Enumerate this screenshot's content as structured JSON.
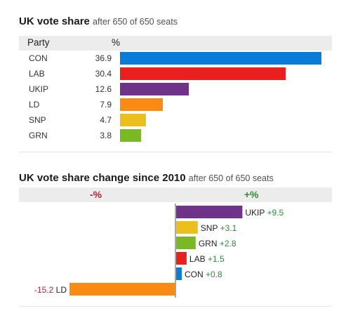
{
  "vote_share": {
    "title": "UK vote share",
    "subtitle": "after 650 of 650 seats",
    "header_party": "Party",
    "header_pct": "%"
  },
  "vote_change": {
    "title": "UK vote share change since 2010",
    "subtitle": "after 650 of 650 seats",
    "header_minus": "-%",
    "header_plus": "+%"
  },
  "chart_data": [
    {
      "type": "bar",
      "orientation": "horizontal",
      "title": "UK vote share",
      "subtitle": "after 650 of 650 seats",
      "categories": [
        "CON",
        "LAB",
        "UKIP",
        "LD",
        "SNP",
        "GRN"
      ],
      "values": [
        36.9,
        30.4,
        12.6,
        7.9,
        4.7,
        3.8
      ],
      "value_labels": [
        "36.9",
        "30.4",
        "12.6",
        "7.9",
        "4.7",
        "3.8"
      ],
      "colors": [
        "#0a7bd6",
        "#ea1f1f",
        "#70338a",
        "#f98a14",
        "#ebc01d",
        "#7ab826"
      ],
      "xlim": [
        0,
        36.9
      ],
      "grid": false
    },
    {
      "type": "bar",
      "orientation": "horizontal",
      "diverging": true,
      "title": "UK vote share change since 2010",
      "subtitle": "after 650 of 650 seats",
      "categories": [
        "UKIP",
        "SNP",
        "GRN",
        "LAB",
        "CON",
        "LD"
      ],
      "values": [
        9.5,
        3.1,
        2.8,
        1.5,
        0.8,
        -15.2
      ],
      "value_labels": [
        "+9.5",
        "+3.1",
        "+2.8",
        "+1.5",
        "+0.8",
        "-15.2"
      ],
      "colors": [
        "#70338a",
        "#ebc01d",
        "#7ab826",
        "#ea1f1f",
        "#0a7bd6",
        "#f98a14"
      ],
      "positive_label_color": "#2f8a3b",
      "negative_label_color": "#b3243a",
      "xlim": [
        -15.2,
        15.2
      ],
      "grid": false
    }
  ]
}
